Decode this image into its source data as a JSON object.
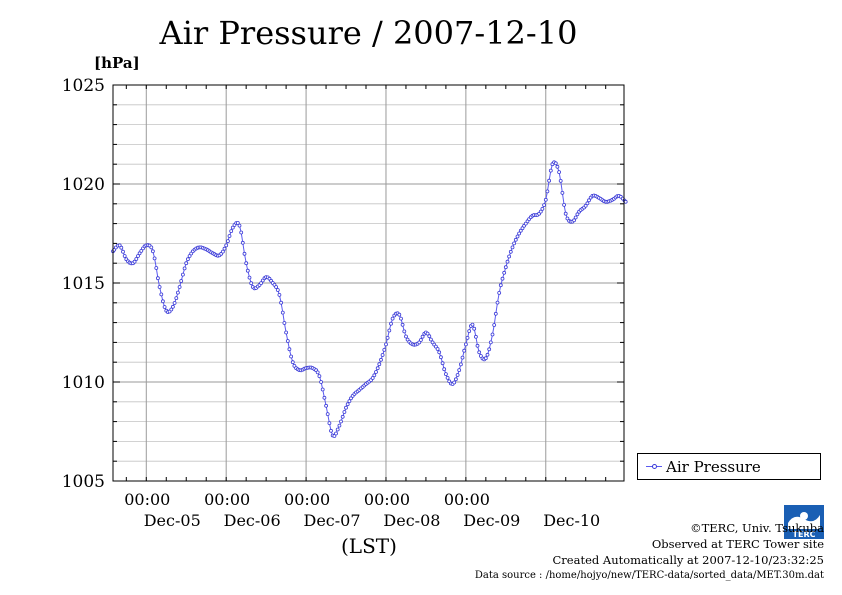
{
  "title": "Air Pressure / 2007-12-10",
  "unit_label": "[hPa]",
  "x_axis_label": "(LST)",
  "legend": {
    "label": "Air Pressure"
  },
  "logo": {
    "icon": "terc-logo-icon",
    "text": "TERC"
  },
  "credits": {
    "copyright": "©TERC, Univ. Tsukuba",
    "observed": "Observed at TERC Tower site",
    "created": "Created Automatically at 2007-12-10/23:32:25",
    "source": "Data source : /home/hojyo/new/TERC-data/sorted_data/MET.30m.dat"
  },
  "colors": {
    "series": "#5a5af0",
    "grid": "#a8a8a8",
    "axis": "#000000"
  },
  "chart_data": {
    "type": "line",
    "title": "Air Pressure / 2007-12-10",
    "ylabel": "[hPa]",
    "xlabel": "(LST)",
    "ylim": [
      1005,
      1025
    ],
    "y_ticks": [
      1005,
      1010,
      1015,
      1020,
      1025
    ],
    "y_tick_labels": [
      "1005",
      "1010",
      "1015",
      "1020",
      "1025"
    ],
    "xlim": [
      "2007-12-04 14:00",
      "2007-12-10 23:30"
    ],
    "x_time_ticks": [
      "00:00",
      "00:00",
      "00:00",
      "00:00",
      "00:00"
    ],
    "x_date_labels": [
      "Dec-05",
      "Dec-06",
      "Dec-07",
      "Dec-08",
      "Dec-09",
      "Dec-10"
    ],
    "grid": true,
    "legend_position": "right",
    "marker": "small-circle",
    "series": [
      {
        "name": "Air Pressure",
        "x_hours": [
          0,
          2,
          4,
          6,
          8,
          10,
          12,
          14,
          16,
          18,
          20,
          22,
          24,
          26,
          28,
          30,
          32,
          34,
          36,
          38,
          40,
          42,
          44,
          46,
          48,
          50,
          52,
          54,
          56,
          58,
          60,
          62,
          64,
          66,
          68,
          70,
          72,
          74,
          76,
          78,
          80,
          82,
          84,
          86,
          88,
          90,
          92,
          94,
          96,
          98,
          100,
          102,
          104,
          106,
          108,
          110,
          112,
          114,
          116,
          118,
          120,
          122,
          124,
          126,
          128,
          130,
          132,
          134,
          136,
          138,
          140,
          142,
          144,
          146,
          148,
          150,
          152,
          154
        ],
        "x": [
          "2007-12-04 14:00",
          "2007-12-04 16:00",
          "2007-12-04 18:00",
          "2007-12-04 20:00",
          "2007-12-04 22:00",
          "2007-12-05 00:00",
          "2007-12-05 02:00",
          "2007-12-05 04:00",
          "2007-12-05 06:00",
          "2007-12-05 08:00",
          "2007-12-05 10:00",
          "2007-12-05 12:00",
          "2007-12-05 14:00",
          "2007-12-05 16:00",
          "2007-12-05 18:00",
          "2007-12-05 20:00",
          "2007-12-05 22:00",
          "2007-12-06 00:00",
          "2007-12-06 02:00",
          "2007-12-06 04:00",
          "2007-12-06 06:00",
          "2007-12-06 08:00",
          "2007-12-06 10:00",
          "2007-12-06 12:00",
          "2007-12-06 14:00",
          "2007-12-06 16:00",
          "2007-12-06 18:00",
          "2007-12-06 20:00",
          "2007-12-06 22:00",
          "2007-12-07 00:00",
          "2007-12-07 02:00",
          "2007-12-07 04:00",
          "2007-12-07 06:00",
          "2007-12-07 08:00",
          "2007-12-07 10:00",
          "2007-12-07 12:00",
          "2007-12-07 14:00",
          "2007-12-07 16:00",
          "2007-12-07 18:00",
          "2007-12-07 20:00",
          "2007-12-07 22:00",
          "2007-12-08 00:00",
          "2007-12-08 02:00",
          "2007-12-08 04:00",
          "2007-12-08 06:00",
          "2007-12-08 08:00",
          "2007-12-08 10:00",
          "2007-12-08 12:00",
          "2007-12-08 14:00",
          "2007-12-08 16:00",
          "2007-12-08 18:00",
          "2007-12-08 20:00",
          "2007-12-08 22:00",
          "2007-12-09 00:00",
          "2007-12-09 02:00",
          "2007-12-09 04:00",
          "2007-12-09 06:00",
          "2007-12-09 08:00",
          "2007-12-09 10:00",
          "2007-12-09 12:00",
          "2007-12-09 14:00",
          "2007-12-09 16:00",
          "2007-12-09 18:00",
          "2007-12-09 20:00",
          "2007-12-09 22:00",
          "2007-12-10 00:00",
          "2007-12-10 02:00",
          "2007-12-10 04:00",
          "2007-12-10 06:00",
          "2007-12-10 08:00",
          "2007-12-10 10:00",
          "2007-12-10 12:00",
          "2007-12-10 14:00",
          "2007-12-10 16:00",
          "2007-12-10 18:00",
          "2007-12-10 20:00",
          "2007-12-10 22:00",
          "2007-12-11 00:00"
        ],
        "values": [
          1016.6,
          1016.9,
          1016.2,
          1016.0,
          1016.5,
          1016.9,
          1016.6,
          1014.8,
          1013.6,
          1013.8,
          1014.8,
          1016.0,
          1016.6,
          1016.8,
          1016.7,
          1016.5,
          1016.4,
          1016.9,
          1017.8,
          1017.9,
          1016.0,
          1014.8,
          1014.9,
          1015.3,
          1015.0,
          1014.4,
          1012.5,
          1011.0,
          1010.6,
          1010.7,
          1010.7,
          1010.3,
          1008.8,
          1007.3,
          1007.8,
          1008.7,
          1009.3,
          1009.6,
          1009.9,
          1010.2,
          1010.9,
          1011.9,
          1013.2,
          1013.4,
          1012.3,
          1011.9,
          1012.0,
          1012.5,
          1012.0,
          1011.5,
          1010.4,
          1009.9,
          1010.6,
          1011.9,
          1012.9,
          1011.5,
          1011.2,
          1012.4,
          1014.5,
          1015.8,
          1016.8,
          1017.5,
          1018.0,
          1018.4,
          1018.5,
          1019.2,
          1021.0,
          1020.6,
          1018.5,
          1018.1,
          1018.6,
          1018.9,
          1019.4,
          1019.3,
          1019.1,
          1019.2,
          1019.4,
          1019.1
        ]
      }
    ]
  }
}
